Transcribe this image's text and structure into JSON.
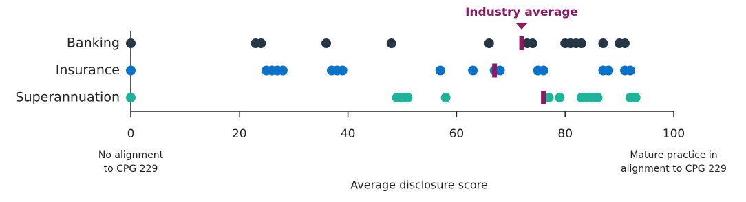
{
  "chart_data": {
    "type": "strip",
    "categories": [
      "Banking",
      "Insurance",
      "Superannuation"
    ],
    "colors": [
      "#253746",
      "#0b72c9",
      "#1db49a"
    ],
    "values": [
      [
        0,
        23,
        24,
        36,
        48,
        66,
        73,
        74,
        80,
        81,
        82,
        83,
        87,
        90,
        91
      ],
      [
        0,
        25,
        26,
        27,
        28,
        37,
        38,
        39,
        57,
        63,
        67,
        68,
        75,
        76,
        87,
        88,
        91,
        92
      ],
      [
        0,
        49,
        50,
        51,
        58,
        77,
        79,
        83,
        84,
        85,
        86,
        92,
        93
      ]
    ],
    "average": {
      "label": "Industry average",
      "color": "#8b1a62",
      "values": [
        72,
        67,
        76
      ]
    },
    "xlim": [
      0,
      100
    ],
    "xticks": [
      0,
      20,
      40,
      60,
      80,
      100
    ],
    "xlabel": "Average disclosure score",
    "left_note": [
      "No alignment",
      "to CPG 229"
    ],
    "right_note": [
      "Mature practice in",
      "alignment to CPG 229"
    ]
  }
}
